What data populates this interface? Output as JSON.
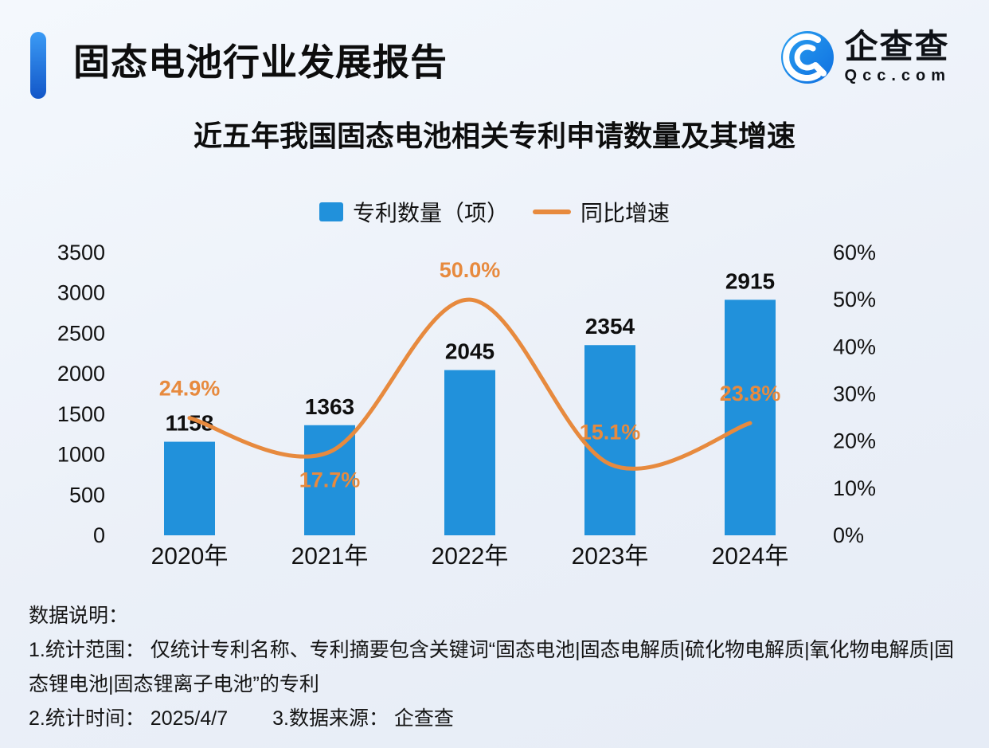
{
  "header": {
    "title": "固态电池行业发展报告",
    "logo_text": "企查查",
    "logo_sub": "Qcc.com"
  },
  "chart_title": "近五年我国固态电池相关专利申请数量及其增速",
  "legend": {
    "bars": "专利数量（项）",
    "line": "同比增速"
  },
  "chart_data": {
    "type": "bar+line",
    "title": "近五年我国固态电池相关专利申请数量及其增速",
    "categories": [
      "2020年",
      "2021年",
      "2022年",
      "2023年",
      "2024年"
    ],
    "series": [
      {
        "name": "专利数量（项）",
        "type": "bar",
        "axis": "left",
        "color": "#2191db",
        "values": [
          1158,
          1363,
          2045,
          2354,
          2915
        ]
      },
      {
        "name": "同比增速",
        "type": "line",
        "axis": "right",
        "color": "#e78a3e",
        "values": [
          24.9,
          17.7,
          50.0,
          15.1,
          23.8
        ]
      }
    ],
    "bar_labels": [
      "1158",
      "1363",
      "2045",
      "2354",
      "2915"
    ],
    "line_labels": [
      "24.9%",
      "17.7%",
      "50.0%",
      "15.1%",
      "23.8%"
    ],
    "line_label_offsets": [
      -28,
      44,
      -28,
      -31,
      -28
    ],
    "left_axis": {
      "min": 0,
      "max": 3500,
      "step": 500,
      "ticks": [
        "3500",
        "3000",
        "2500",
        "2000",
        "1500",
        "1000",
        "500",
        "0"
      ]
    },
    "right_axis": {
      "min": 0,
      "max": 60,
      "step": 10,
      "ticks": [
        "60%",
        "50%",
        "40%",
        "30%",
        "20%",
        "10%",
        "0%"
      ]
    },
    "grid": false,
    "legend_position": "top"
  },
  "notes": {
    "line0": "数据说明：",
    "line1": "1.统计范围： 仅统计专利名称、专利摘要包含关键词“固态电池|固态电解质|硫化物电解质|氧化物电解质|固态锂电池|固态锂离子电池”的专利",
    "time": "2.统计时间： 2025/4/7",
    "source": "3.数据来源： 企查查"
  }
}
